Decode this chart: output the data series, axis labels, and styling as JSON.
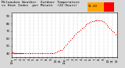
{
  "title": "Milwaukee Weather  Outdoor Temperature",
  "title2": "vs Heat Index  per Minute  (24 Hours)",
  "bg_color": "#d8d8d8",
  "plot_bg": "#ffffff",
  "dot_color": "#ff0000",
  "dot_size": 0.8,
  "legend_box1_color": "#ffa500",
  "legend_box2_color": "#ff0000",
  "legend_label": "91.00",
  "ylim": [
    35,
    95
  ],
  "yticks": [
    40,
    50,
    60,
    70,
    80,
    90
  ],
  "title_fontsize": 3.2,
  "tick_fontsize": 2.8,
  "x_minutes": 1440,
  "data_x": [
    0,
    5,
    10,
    15,
    20,
    25,
    30,
    35,
    40,
    45,
    50,
    55,
    60,
    70,
    80,
    90,
    100,
    110,
    120,
    130,
    140,
    150,
    160,
    180,
    200,
    220,
    240,
    260,
    280,
    300,
    320,
    340,
    360,
    380,
    400,
    420,
    440,
    460,
    480,
    500,
    520,
    540,
    560,
    580,
    600,
    620,
    640,
    660,
    680,
    700,
    720,
    740,
    760,
    780,
    800,
    820,
    840,
    860,
    880,
    900,
    920,
    940,
    960,
    980,
    1000,
    1020,
    1040,
    1060,
    1080,
    1100,
    1120,
    1140,
    1160,
    1180,
    1200,
    1220,
    1240,
    1260,
    1280,
    1300,
    1320,
    1340,
    1360,
    1380,
    1400,
    1420,
    1439
  ],
  "data_y": [
    42,
    41,
    41,
    40,
    40,
    40,
    40,
    40,
    40,
    40,
    40,
    40,
    40,
    40,
    40,
    40,
    40,
    40,
    40,
    40,
    40,
    40,
    40,
    40,
    40,
    40,
    40,
    40,
    40,
    40,
    40,
    40,
    40,
    40,
    40,
    40,
    40,
    40,
    40,
    40,
    40,
    40,
    40,
    40,
    41,
    42,
    43,
    44,
    45,
    47,
    49,
    51,
    53,
    56,
    58,
    60,
    62,
    64,
    66,
    68,
    70,
    72,
    74,
    75,
    77,
    79,
    80,
    81,
    82,
    83,
    83,
    84,
    84,
    84,
    84,
    84,
    83,
    82,
    80,
    78,
    76,
    74,
    72,
    70,
    68,
    65,
    62
  ],
  "xtick_positions": [
    0,
    60,
    120,
    180,
    240,
    300,
    360,
    420,
    480,
    540,
    600,
    660,
    720,
    780,
    840,
    900,
    960,
    1020,
    1080,
    1140,
    1200,
    1260,
    1320,
    1380,
    1439
  ],
  "xtick_labels": [
    "12a",
    "1",
    "2",
    "3",
    "4",
    "5",
    "6",
    "7",
    "8",
    "9",
    "10",
    "11",
    "12p",
    "1",
    "2",
    "3",
    "4",
    "5",
    "6",
    "7",
    "8",
    "9",
    "10",
    "11",
    "12"
  ]
}
